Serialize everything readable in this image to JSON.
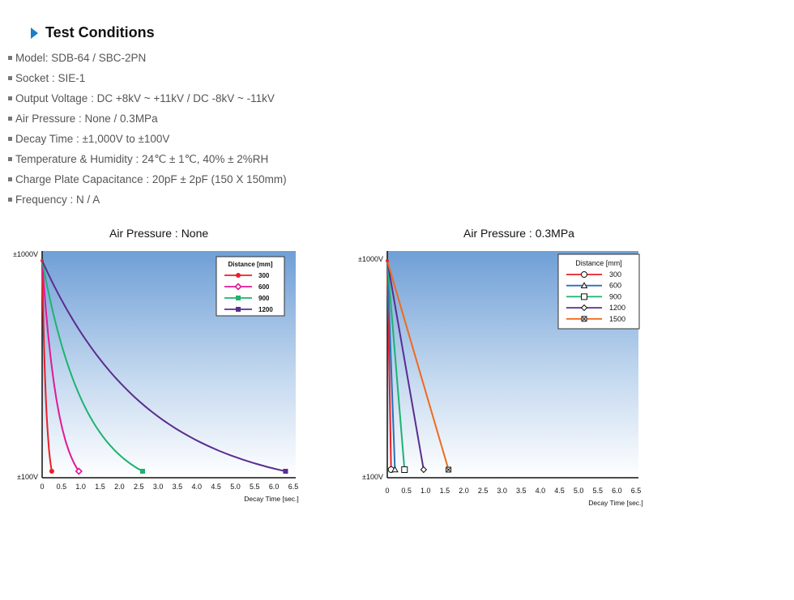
{
  "section": {
    "title": "Test Conditions"
  },
  "conditions": [
    "Model: SDB-64 / SBC-2PN",
    "Socket : SIE-1",
    "Output Voltage : DC +8kV ~ +11kV / DC -8kV ~ -11kV",
    "Air Pressure : None / 0.3MPa",
    "Decay Time : ±1,000V to ±100V",
    "Temperature & Humidity : 24℃ ± 1℃, 40% ± 2%RH",
    "Charge Plate Capacitance : 20pF ± 2pF (150 X 150mm)",
    "Frequency : N / A"
  ],
  "colors": {
    "red": "#e8202a",
    "magenta": "#e0189a",
    "green": "#1db36e",
    "purple": "#5a2d8e",
    "blue": "#2a6fb8",
    "orange": "#ef6a1c"
  },
  "chart_data": [
    {
      "type": "line",
      "title": "Air Pressure : None",
      "xlabel": "Decay Time [sec.]",
      "ylabel": "",
      "y_ticks": [
        "±1000V",
        "±100V"
      ],
      "x_ticks": [
        "0",
        "0.5",
        "1.0",
        "1.5",
        "2.0",
        "2.5",
        "3.0",
        "3.5",
        "4.0",
        "4.5",
        "5.0",
        "5.5",
        "6.0",
        "6.5"
      ],
      "xlim": [
        0,
        6.5
      ],
      "ylim": [
        100,
        1000
      ],
      "legend_title": "Distance [mm]",
      "legend_position": "top-right",
      "series": [
        {
          "name": "300",
          "color": "#e8202a",
          "marker": "dot",
          "decay_time": 0.25
        },
        {
          "name": "600",
          "color": "#e0189a",
          "marker": "diamond",
          "decay_time": 0.95
        },
        {
          "name": "900",
          "color": "#1db36e",
          "marker": "square",
          "decay_time": 2.6
        },
        {
          "name": "1200",
          "color": "#5a2d8e",
          "marker": "square",
          "decay_time": 6.3
        }
      ]
    },
    {
      "type": "line",
      "title": "Air Pressure : 0.3MPa",
      "xlabel": "Decay Time [sec.]",
      "ylabel": "",
      "y_ticks": [
        "±1000V",
        "±100V"
      ],
      "x_ticks": [
        "0",
        "0.5",
        "1.0",
        "1.5",
        "2.0",
        "2.5",
        "3.0",
        "3.5",
        "4.0",
        "4.5",
        "5.0",
        "5.5",
        "6.0",
        "6.5"
      ],
      "xlim": [
        0,
        6.5
      ],
      "ylim": [
        100,
        1000
      ],
      "legend_title": "Distance [mm]",
      "legend_position": "top-right",
      "series": [
        {
          "name": "300",
          "color": "#e8202a",
          "marker": "circle",
          "decay_time": 0.1
        },
        {
          "name": "600",
          "color": "#2a6fb8",
          "marker": "triangle",
          "decay_time": 0.2
        },
        {
          "name": "900",
          "color": "#1db36e",
          "marker": "square-open",
          "decay_time": 0.45
        },
        {
          "name": "1200",
          "color": "#5a2d8e",
          "marker": "diamond-open",
          "decay_time": 0.95
        },
        {
          "name": "1500",
          "color": "#ef6a1c",
          "marker": "square-x",
          "decay_time": 1.6
        }
      ]
    }
  ]
}
